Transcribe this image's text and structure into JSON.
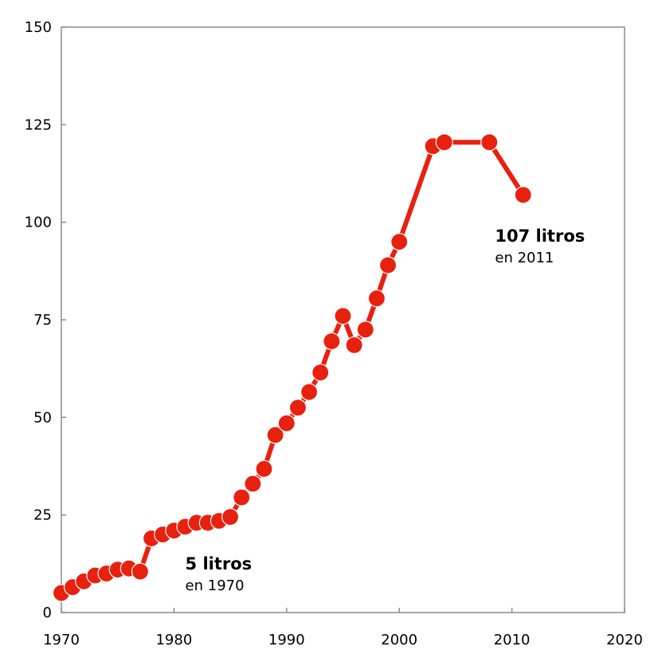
{
  "chart_data": {
    "type": "line",
    "title": "",
    "xlabel": "",
    "ylabel": "",
    "xlim": [
      1970,
      2020
    ],
    "ylim": [
      0,
      150
    ],
    "x_ticks": [
      1970,
      1980,
      1990,
      2000,
      2010,
      2020
    ],
    "y_ticks": [
      0,
      25,
      50,
      75,
      100,
      125,
      150
    ],
    "grid": false,
    "legend": "none",
    "series": [
      {
        "color": "#e8200e",
        "points": [
          {
            "x": 1970,
            "y": 5
          },
          {
            "x": 1971,
            "y": 6.5
          },
          {
            "x": 1972,
            "y": 8
          },
          {
            "x": 1973,
            "y": 9.5
          },
          {
            "x": 1974,
            "y": 10
          },
          {
            "x": 1975,
            "y": 11
          },
          {
            "x": 1976,
            "y": 11.3
          },
          {
            "x": 1977,
            "y": 10.5
          },
          {
            "x": 1978,
            "y": 19
          },
          {
            "x": 1979,
            "y": 20
          },
          {
            "x": 1980,
            "y": 21
          },
          {
            "x": 1981,
            "y": 22
          },
          {
            "x": 1982,
            "y": 23
          },
          {
            "x": 1983,
            "y": 23
          },
          {
            "x": 1984,
            "y": 23.5
          },
          {
            "x": 1985,
            "y": 24.5
          },
          {
            "x": 1986,
            "y": 29.5
          },
          {
            "x": 1987,
            "y": 33
          },
          {
            "x": 1988,
            "y": 36.8
          },
          {
            "x": 1989,
            "y": 45.5
          },
          {
            "x": 1990,
            "y": 48.5
          },
          {
            "x": 1991,
            "y": 52.5
          },
          {
            "x": 1992,
            "y": 56.5
          },
          {
            "x": 1993,
            "y": 61.5
          },
          {
            "x": 1994,
            "y": 69.5
          },
          {
            "x": 1995,
            "y": 76
          },
          {
            "x": 1996,
            "y": 68.5
          },
          {
            "x": 1997,
            "y": 72.5
          },
          {
            "x": 1998,
            "y": 80.5
          },
          {
            "x": 1999,
            "y": 89
          },
          {
            "x": 2000,
            "y": 95
          },
          {
            "x": 2003,
            "y": 119.5
          },
          {
            "x": 2004,
            "y": 120.5
          },
          {
            "x": 2008,
            "y": 120.5
          },
          {
            "x": 2011,
            "y": 107
          }
        ]
      }
    ],
    "annotations": [
      {
        "title": "5 litros",
        "subtitle": "en 1970",
        "anchor_x": 1981,
        "anchor_y": 11
      },
      {
        "title": "107 litros",
        "subtitle": "en 2011",
        "anchor_x": 2008.5,
        "anchor_y": 95
      }
    ]
  }
}
